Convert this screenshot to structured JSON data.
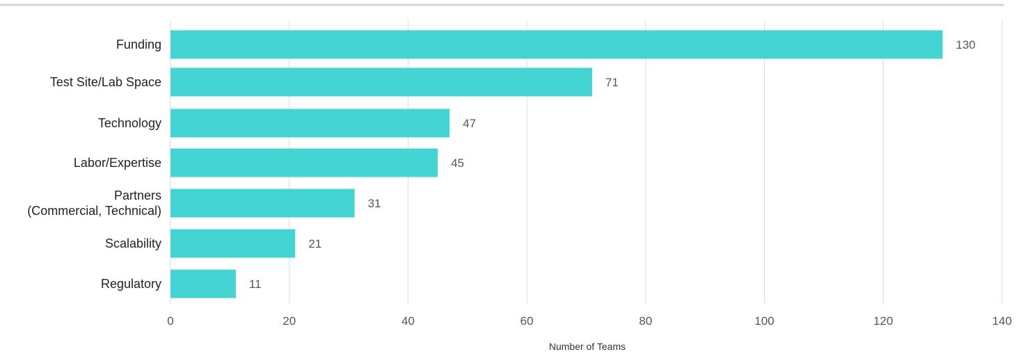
{
  "chart_data": {
    "type": "bar",
    "orientation": "horizontal",
    "categories": [
      [
        "Funding"
      ],
      [
        "Test Site/Lab Space"
      ],
      [
        "Technology"
      ],
      [
        "Labor/Expertise"
      ],
      [
        "Partners",
        "(Commercial, Technical)"
      ],
      [
        "Scalability"
      ],
      [
        "Regulatory"
      ]
    ],
    "values": [
      130,
      71,
      47,
      45,
      31,
      21,
      11
    ],
    "xlabel": "Number of Teams",
    "xlim": [
      0,
      140
    ],
    "xticks": [
      0,
      20,
      40,
      60,
      80,
      100,
      120,
      140
    ],
    "grid": true,
    "bar_color": "#44d4d4",
    "grid_color": "#d9d9d9",
    "top_rule_color": "#d4d4d4"
  }
}
